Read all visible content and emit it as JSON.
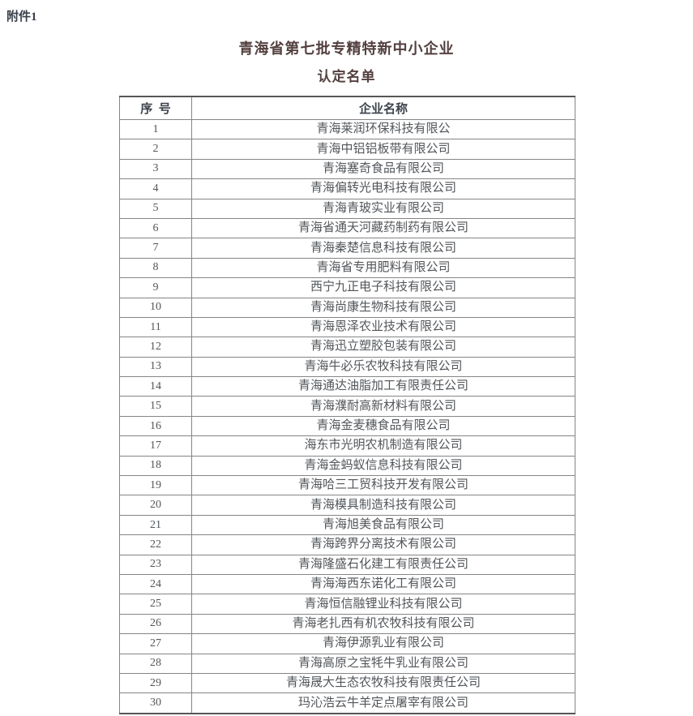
{
  "page": {
    "attachment_label": "附件1",
    "title_line1": "青海省第七批专精特新中小企业",
    "title_line2": "认定名单"
  },
  "table": {
    "columns": [
      "序  号",
      "企业名称"
    ],
    "rows": [
      [
        "1",
        "青海莱润环保科技有限公"
      ],
      [
        "2",
        "青海中铝铝板带有限公司"
      ],
      [
        "3",
        "青海塞奇食品有限公司"
      ],
      [
        "4",
        "青海偏转光电科技有限公司"
      ],
      [
        "5",
        "青海青玻实业有限公司"
      ],
      [
        "6",
        "青海省通天河藏药制药有限公司"
      ],
      [
        "7",
        "青海秦楚信息科技有限公司"
      ],
      [
        "8",
        "青海省专用肥料有限公司"
      ],
      [
        "9",
        "西宁九正电子科技有限公司"
      ],
      [
        "10",
        "青海尚康生物科技有限公司"
      ],
      [
        "11",
        "青海恩泽农业技术有限公司"
      ],
      [
        "12",
        "青海迅立塑胶包装有限公司"
      ],
      [
        "13",
        "青海牛必乐农牧科技有限公司"
      ],
      [
        "14",
        "青海通达油脂加工有限责任公司"
      ],
      [
        "15",
        "青海濮耐高新材料有限公司"
      ],
      [
        "16",
        "青海金麦穗食品有限公司"
      ],
      [
        "17",
        "海东市光明农机制造有限公司"
      ],
      [
        "18",
        "青海金蚂蚁信息科技有限公司"
      ],
      [
        "19",
        "青海哈三工贸科技开发有限公司"
      ],
      [
        "20",
        "青海模具制造科技有限公司"
      ],
      [
        "21",
        "青海旭美食品有限公司"
      ],
      [
        "22",
        "青海跨界分离技术有限公司"
      ],
      [
        "23",
        "青海隆盛石化建工有限责任公司"
      ],
      [
        "24",
        "青海海西东诺化工有限公司"
      ],
      [
        "25",
        "青海恒信融锂业科技有限公司"
      ],
      [
        "26",
        "青海老扎西有机农牧科技有限公司"
      ],
      [
        "27",
        "青海伊源乳业有限公司"
      ],
      [
        "28",
        "青海高原之宝牦牛乳业有限公司"
      ],
      [
        "29",
        "青海晟大生态农牧科技有限责任公司"
      ],
      [
        "30",
        "玛沁浩云牛羊定点屠宰有限公司"
      ]
    ]
  },
  "colors": {
    "title-color": "#53403f",
    "label-color": "#39404a",
    "header-text-color": "#3d434c",
    "text-color": "#52565a",
    "border-color": "#858585",
    "outer-border-color": "#565656"
  }
}
